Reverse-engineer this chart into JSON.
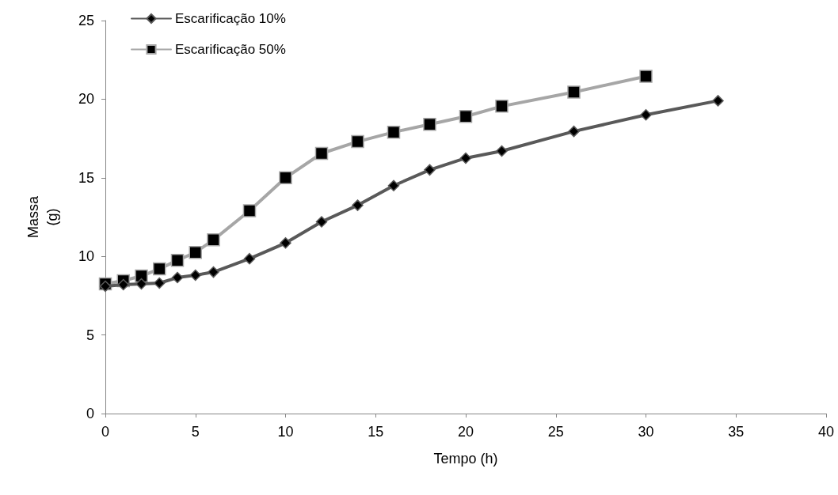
{
  "chart_data": {
    "type": "line",
    "xlabel": "Tempo (h)",
    "ylabel": "Massa (g)",
    "xlim": [
      0,
      40
    ],
    "xticks": [
      0,
      5,
      10,
      15,
      20,
      25,
      30,
      35,
      40
    ],
    "ylim": [
      0,
      25
    ],
    "yticks": [
      0,
      5,
      10,
      15,
      20,
      25
    ],
    "grid": false,
    "legend": "top left",
    "line_style": "solid",
    "series": [
      {
        "name": "Escarificação 10%",
        "color": "#595959",
        "marker": "diamond",
        "x": [
          0,
          1,
          2,
          3,
          4,
          5,
          6,
          8,
          10,
          12,
          14,
          16,
          18,
          20,
          22,
          26,
          30,
          34
        ],
        "values": [
          8.1,
          8.2,
          8.25,
          8.3,
          8.65,
          8.8,
          9.0,
          9.85,
          10.85,
          12.2,
          13.25,
          14.5,
          15.5,
          16.25,
          16.7,
          17.95,
          19.0,
          19.9
        ]
      },
      {
        "name": "Escarificação 50%",
        "color": "#a6a6a6",
        "marker": "square",
        "x": [
          0,
          1,
          2,
          3,
          4,
          5,
          6,
          8,
          10,
          12,
          14,
          16,
          18,
          20,
          22,
          26,
          30
        ],
        "values": [
          8.25,
          8.45,
          8.75,
          9.2,
          9.75,
          10.25,
          11.05,
          12.9,
          15.0,
          16.55,
          17.3,
          17.9,
          18.4,
          18.9,
          19.55,
          20.45,
          21.45
        ]
      }
    ]
  }
}
